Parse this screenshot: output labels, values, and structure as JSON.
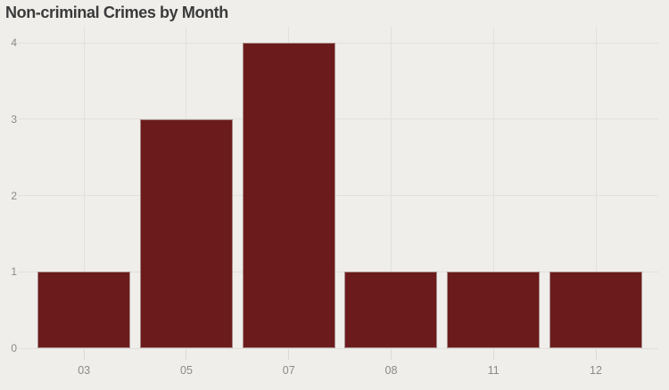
{
  "chart_data": {
    "type": "bar",
    "title": "Non-criminal Crimes by Month",
    "categories": [
      "03",
      "05",
      "07",
      "08",
      "11",
      "12"
    ],
    "values": [
      1,
      3,
      4,
      1,
      1,
      1
    ],
    "xlabel": "",
    "ylabel": "",
    "yticks": [
      0,
      1,
      2,
      3,
      4
    ],
    "ylim": [
      0,
      4
    ],
    "grid": true,
    "legend": false,
    "colors": {
      "bar_fill": "#6B1B1B",
      "bar_edge": "#A98C8A",
      "background": "#EFEEEB",
      "gridline": "#E2E0DD",
      "tick_mark": "#DCDAD7",
      "axis_label": "#8A8A8A",
      "title": "#3A3A3A"
    }
  }
}
